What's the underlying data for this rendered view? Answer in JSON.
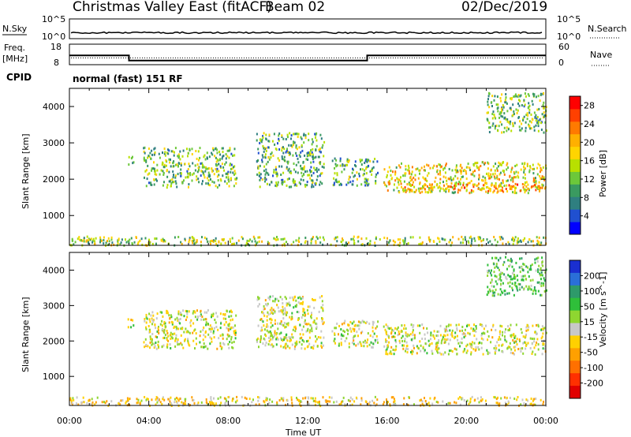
{
  "header": {
    "title": "Christmas Valley East (fitACF)",
    "beam": "Beam 02",
    "date": "02/Dec/2019"
  },
  "status_panels": {
    "nsky_label": "N.Sky",
    "nsky_ticks": [
      "10^5",
      "10^0"
    ],
    "nsearch_label": "N.Search",
    "nsearch_ticks": [
      "10^5",
      "10^0"
    ],
    "freq_label_line1": "Freq.",
    "freq_label_line2": "[MHz]",
    "freq_ticks": [
      "18",
      "8"
    ],
    "nave_label": "Nave",
    "nave_ticks": [
      "60",
      "0"
    ],
    "cpid_label": "CPID",
    "cpid_text": "normal (fast) 151 RF"
  },
  "colors": {
    "power_scale": [
      "#0000ff",
      "#2050d0",
      "#2f7f80",
      "#3a9a60",
      "#6cc83a",
      "#b8e000",
      "#ffd400",
      "#ffb000",
      "#ff7a00",
      "#ff4000",
      "#ff0000"
    ],
    "velocity_scale": [
      "#1a2fd0",
      "#2a6fd8",
      "#2e9a6a",
      "#2fbf3a",
      "#8fd630",
      "#c8c8c8",
      "#ffd000",
      "#ffa000",
      "#ff7000",
      "#ff3000",
      "#e00000"
    ],
    "axis": "#000000"
  },
  "chart_data": [
    {
      "type": "heatmap",
      "title": "Power",
      "xlabel": "Time UT",
      "ylabel": "Slant Range [km]",
      "x_ticks": [
        "00:00",
        "04:00",
        "08:00",
        "12:00",
        "16:00",
        "20:00",
        "00:00"
      ],
      "xlim_hours": [
        0,
        24
      ],
      "ylim_km": [
        180,
        4500
      ],
      "y_ticks": [
        1000,
        2000,
        3000,
        4000
      ],
      "colorbar": {
        "label": "Power [dB]",
        "range": [
          0,
          30
        ],
        "ticks": [
          4,
          8,
          12,
          16,
          20,
          24,
          28
        ]
      },
      "echo_regions": [
        {
          "start_h": 2.9,
          "end_h": 3.2,
          "range_km": [
            2400,
            2700
          ],
          "value": 10
        },
        {
          "start_h": 3.7,
          "end_h": 8.4,
          "range_km": [
            1800,
            2900
          ],
          "value": 12
        },
        {
          "start_h": 9.4,
          "end_h": 12.8,
          "range_km": [
            1800,
            3300
          ],
          "value": 11
        },
        {
          "start_h": 13.2,
          "end_h": 15.5,
          "range_km": [
            1850,
            2600
          ],
          "value": 10
        },
        {
          "start_h": 15.8,
          "end_h": 24.0,
          "range_km": [
            1650,
            2500
          ],
          "value": 17
        },
        {
          "start_h": 16.8,
          "end_h": 23.8,
          "range_km": [
            1700,
            1900
          ],
          "value": 21
        },
        {
          "start_h": 21.0,
          "end_h": 24.0,
          "range_km": [
            3300,
            4400
          ],
          "value": 12
        },
        {
          "start_h": 0.0,
          "end_h": 24.0,
          "range_km": [
            200,
            450
          ],
          "value": 14
        }
      ]
    },
    {
      "type": "heatmap",
      "title": "Velocity",
      "xlabel": "Time UT",
      "ylabel": "Slant Range [km]",
      "x_ticks": [
        "00:00",
        "04:00",
        "08:00",
        "12:00",
        "16:00",
        "20:00",
        "00:00"
      ],
      "xlim_hours": [
        0,
        24
      ],
      "ylim_km": [
        180,
        4500
      ],
      "y_ticks": [
        1000,
        2000,
        3000,
        4000
      ],
      "colorbar": {
        "label": "Velocity [m s^-1]",
        "tick_labels": [
          "200",
          "100",
          "50",
          "15",
          "-15",
          "-50",
          "-100",
          "-200"
        ]
      },
      "echo_regions": [
        {
          "start_h": 2.9,
          "end_h": 3.2,
          "range_km": [
            2400,
            2700
          ],
          "value": 0
        },
        {
          "start_h": 3.7,
          "end_h": 8.4,
          "range_km": [
            1800,
            2900
          ],
          "value": 0
        },
        {
          "start_h": 9.4,
          "end_h": 12.8,
          "range_km": [
            1800,
            3300
          ],
          "value": 0
        },
        {
          "start_h": 13.2,
          "end_h": 15.5,
          "range_km": [
            1850,
            2600
          ],
          "value": 0
        },
        {
          "start_h": 15.8,
          "end_h": 24.0,
          "range_km": [
            1650,
            2500
          ],
          "value": 0
        },
        {
          "start_h": 21.0,
          "end_h": 24.0,
          "range_km": [
            3300,
            4400
          ],
          "value": 60
        },
        {
          "start_h": 0.0,
          "end_h": 24.0,
          "range_km": [
            200,
            450
          ],
          "value": -30
        }
      ]
    }
  ],
  "status_series": {
    "frequency_mhz": [
      {
        "start_h": 0.0,
        "end_h": 3.0,
        "value": 12.5
      },
      {
        "start_h": 3.0,
        "end_h": 15.0,
        "value": 10.0
      },
      {
        "start_h": 15.0,
        "end_h": 24.0,
        "value": 12.5
      }
    ],
    "nave": 20,
    "noise_sky_level": 1.5
  }
}
